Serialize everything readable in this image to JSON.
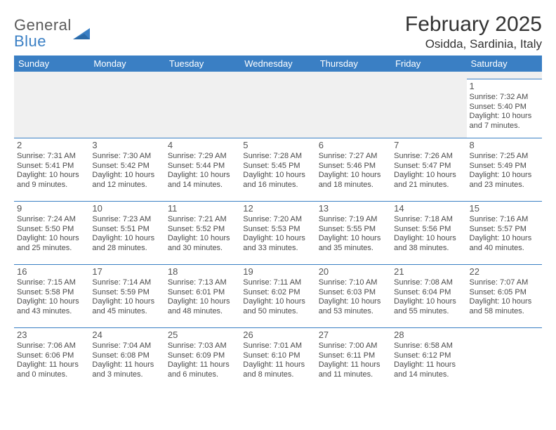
{
  "logo": {
    "line1": "General",
    "line2": "Blue"
  },
  "title": "February 2025",
  "location": "Osidda, Sardinia, Italy",
  "colors": {
    "header_bg": "#3a7fc4",
    "header_fg": "#ffffff",
    "rule": "#3a7fc4",
    "text": "#4a4a4a",
    "blank_bg": "#f0f0f0",
    "page_bg": "#ffffff"
  },
  "day_headers": [
    "Sunday",
    "Monday",
    "Tuesday",
    "Wednesday",
    "Thursday",
    "Friday",
    "Saturday"
  ],
  "weeks": [
    [
      null,
      null,
      null,
      null,
      null,
      null,
      {
        "n": "1",
        "sr": "Sunrise: 7:32 AM",
        "ss": "Sunset: 5:40 PM",
        "dl1": "Daylight: 10 hours",
        "dl2": "and 7 minutes."
      }
    ],
    [
      {
        "n": "2",
        "sr": "Sunrise: 7:31 AM",
        "ss": "Sunset: 5:41 PM",
        "dl1": "Daylight: 10 hours",
        "dl2": "and 9 minutes."
      },
      {
        "n": "3",
        "sr": "Sunrise: 7:30 AM",
        "ss": "Sunset: 5:42 PM",
        "dl1": "Daylight: 10 hours",
        "dl2": "and 12 minutes."
      },
      {
        "n": "4",
        "sr": "Sunrise: 7:29 AM",
        "ss": "Sunset: 5:44 PM",
        "dl1": "Daylight: 10 hours",
        "dl2": "and 14 minutes."
      },
      {
        "n": "5",
        "sr": "Sunrise: 7:28 AM",
        "ss": "Sunset: 5:45 PM",
        "dl1": "Daylight: 10 hours",
        "dl2": "and 16 minutes."
      },
      {
        "n": "6",
        "sr": "Sunrise: 7:27 AM",
        "ss": "Sunset: 5:46 PM",
        "dl1": "Daylight: 10 hours",
        "dl2": "and 18 minutes."
      },
      {
        "n": "7",
        "sr": "Sunrise: 7:26 AM",
        "ss": "Sunset: 5:47 PM",
        "dl1": "Daylight: 10 hours",
        "dl2": "and 21 minutes."
      },
      {
        "n": "8",
        "sr": "Sunrise: 7:25 AM",
        "ss": "Sunset: 5:49 PM",
        "dl1": "Daylight: 10 hours",
        "dl2": "and 23 minutes."
      }
    ],
    [
      {
        "n": "9",
        "sr": "Sunrise: 7:24 AM",
        "ss": "Sunset: 5:50 PM",
        "dl1": "Daylight: 10 hours",
        "dl2": "and 25 minutes."
      },
      {
        "n": "10",
        "sr": "Sunrise: 7:23 AM",
        "ss": "Sunset: 5:51 PM",
        "dl1": "Daylight: 10 hours",
        "dl2": "and 28 minutes."
      },
      {
        "n": "11",
        "sr": "Sunrise: 7:21 AM",
        "ss": "Sunset: 5:52 PM",
        "dl1": "Daylight: 10 hours",
        "dl2": "and 30 minutes."
      },
      {
        "n": "12",
        "sr": "Sunrise: 7:20 AM",
        "ss": "Sunset: 5:53 PM",
        "dl1": "Daylight: 10 hours",
        "dl2": "and 33 minutes."
      },
      {
        "n": "13",
        "sr": "Sunrise: 7:19 AM",
        "ss": "Sunset: 5:55 PM",
        "dl1": "Daylight: 10 hours",
        "dl2": "and 35 minutes."
      },
      {
        "n": "14",
        "sr": "Sunrise: 7:18 AM",
        "ss": "Sunset: 5:56 PM",
        "dl1": "Daylight: 10 hours",
        "dl2": "and 38 minutes."
      },
      {
        "n": "15",
        "sr": "Sunrise: 7:16 AM",
        "ss": "Sunset: 5:57 PM",
        "dl1": "Daylight: 10 hours",
        "dl2": "and 40 minutes."
      }
    ],
    [
      {
        "n": "16",
        "sr": "Sunrise: 7:15 AM",
        "ss": "Sunset: 5:58 PM",
        "dl1": "Daylight: 10 hours",
        "dl2": "and 43 minutes."
      },
      {
        "n": "17",
        "sr": "Sunrise: 7:14 AM",
        "ss": "Sunset: 5:59 PM",
        "dl1": "Daylight: 10 hours",
        "dl2": "and 45 minutes."
      },
      {
        "n": "18",
        "sr": "Sunrise: 7:13 AM",
        "ss": "Sunset: 6:01 PM",
        "dl1": "Daylight: 10 hours",
        "dl2": "and 48 minutes."
      },
      {
        "n": "19",
        "sr": "Sunrise: 7:11 AM",
        "ss": "Sunset: 6:02 PM",
        "dl1": "Daylight: 10 hours",
        "dl2": "and 50 minutes."
      },
      {
        "n": "20",
        "sr": "Sunrise: 7:10 AM",
        "ss": "Sunset: 6:03 PM",
        "dl1": "Daylight: 10 hours",
        "dl2": "and 53 minutes."
      },
      {
        "n": "21",
        "sr": "Sunrise: 7:08 AM",
        "ss": "Sunset: 6:04 PM",
        "dl1": "Daylight: 10 hours",
        "dl2": "and 55 minutes."
      },
      {
        "n": "22",
        "sr": "Sunrise: 7:07 AM",
        "ss": "Sunset: 6:05 PM",
        "dl1": "Daylight: 10 hours",
        "dl2": "and 58 minutes."
      }
    ],
    [
      {
        "n": "23",
        "sr": "Sunrise: 7:06 AM",
        "ss": "Sunset: 6:06 PM",
        "dl1": "Daylight: 11 hours",
        "dl2": "and 0 minutes."
      },
      {
        "n": "24",
        "sr": "Sunrise: 7:04 AM",
        "ss": "Sunset: 6:08 PM",
        "dl1": "Daylight: 11 hours",
        "dl2": "and 3 minutes."
      },
      {
        "n": "25",
        "sr": "Sunrise: 7:03 AM",
        "ss": "Sunset: 6:09 PM",
        "dl1": "Daylight: 11 hours",
        "dl2": "and 6 minutes."
      },
      {
        "n": "26",
        "sr": "Sunrise: 7:01 AM",
        "ss": "Sunset: 6:10 PM",
        "dl1": "Daylight: 11 hours",
        "dl2": "and 8 minutes."
      },
      {
        "n": "27",
        "sr": "Sunrise: 7:00 AM",
        "ss": "Sunset: 6:11 PM",
        "dl1": "Daylight: 11 hours",
        "dl2": "and 11 minutes."
      },
      {
        "n": "28",
        "sr": "Sunrise: 6:58 AM",
        "ss": "Sunset: 6:12 PM",
        "dl1": "Daylight: 11 hours",
        "dl2": "and 14 minutes."
      },
      null
    ]
  ]
}
